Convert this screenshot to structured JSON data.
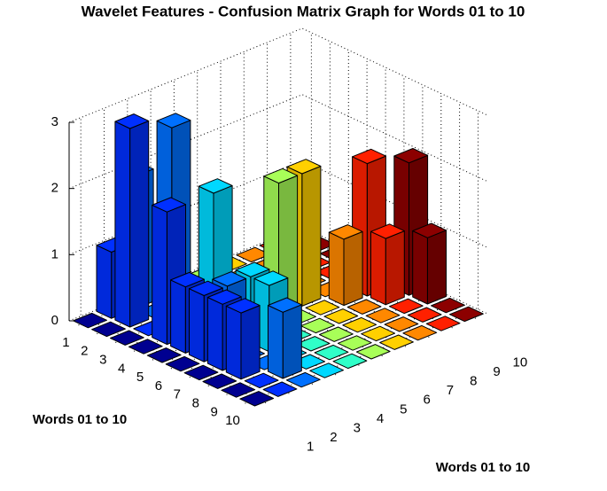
{
  "chart_data": {
    "type": "bar3",
    "title": "Wavelet Features - Confusion Matrix Graph for Words 01 to 10",
    "ylabel": "Words 01 to 10",
    "xlabel": "Words 01 to 10",
    "yticks": [
      1,
      2,
      3,
      4,
      5,
      6,
      7,
      8,
      9,
      10
    ],
    "xticks": [
      1,
      2,
      3,
      4,
      5,
      6,
      7,
      8,
      9,
      10
    ],
    "zlim": [
      0,
      3
    ],
    "zticks": [
      0,
      1,
      2,
      3
    ],
    "grid": true,
    "colors": [
      "#000090",
      "#0030ff",
      "#0070ff",
      "#00d8ff",
      "#30ffc8",
      "#a8ff58",
      "#ffd000",
      "#ff8800",
      "#ff2000",
      "#8c0000"
    ],
    "values": [
      [
        0,
        1,
        2,
        0,
        0,
        0,
        0,
        0,
        0,
        0
      ],
      [
        0,
        3,
        0,
        0,
        0,
        0,
        0,
        0,
        0,
        0
      ],
      [
        0,
        0,
        3,
        0,
        0,
        0,
        0,
        0,
        0,
        0
      ],
      [
        0,
        2,
        0,
        2,
        0,
        0,
        0,
        0,
        0,
        0
      ],
      [
        0,
        1,
        0,
        0,
        0,
        2,
        2,
        0,
        0,
        0
      ],
      [
        0,
        1,
        1,
        1,
        0,
        0,
        0,
        1,
        2,
        0
      ],
      [
        0,
        1,
        0,
        1,
        0,
        0,
        0,
        0,
        1,
        2
      ],
      [
        0,
        1,
        0,
        0,
        0,
        0,
        0,
        0,
        0,
        1
      ],
      [
        0,
        0,
        1,
        0,
        0,
        0,
        0,
        0,
        0,
        0
      ],
      [
        0,
        0,
        0,
        0,
        0,
        0,
        0,
        0,
        0,
        0
      ]
    ]
  }
}
